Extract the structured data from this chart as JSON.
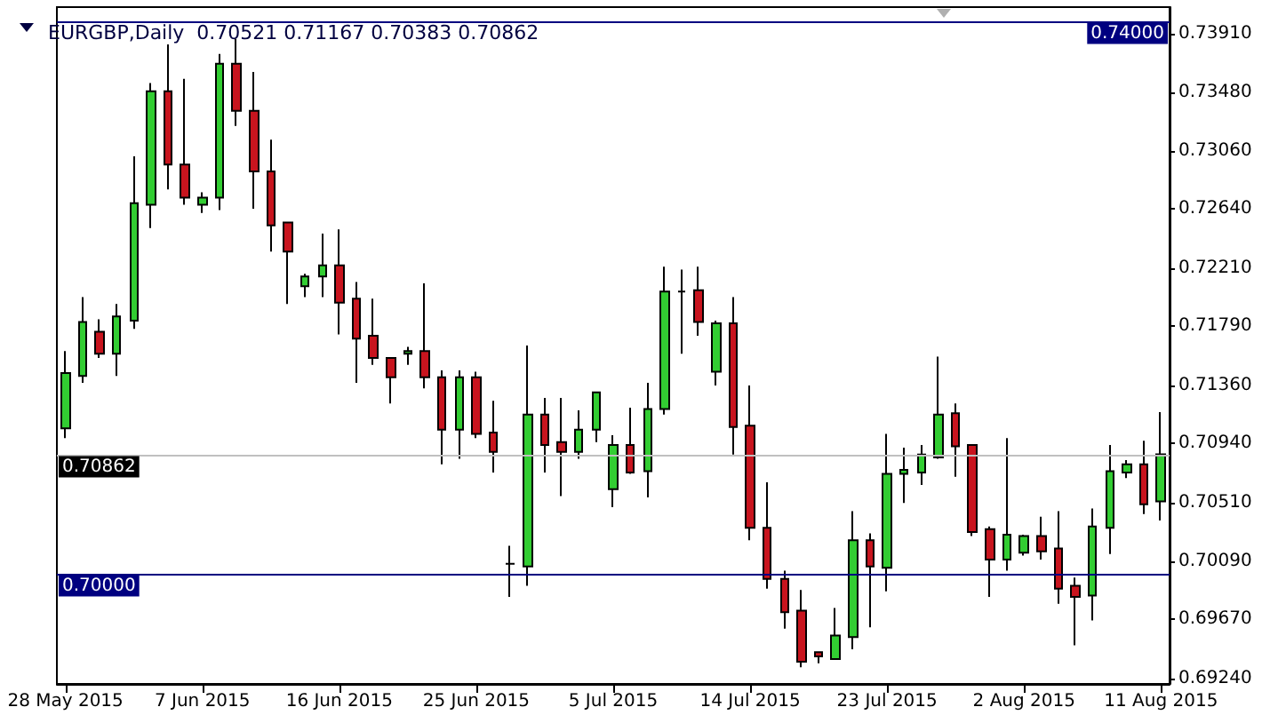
{
  "chart_data": {
    "type": "candlestick",
    "title": "EURGBP,Daily  0.70521 0.71167 0.70383 0.70862",
    "categories": [
      "28 May 2015",
      null,
      null,
      null,
      null,
      null,
      null,
      null,
      "7 Jun 2015",
      null,
      null,
      null,
      null,
      null,
      null,
      null,
      "16 Jun 2015",
      null,
      null,
      null,
      null,
      null,
      null,
      null,
      "25 Jun 2015",
      null,
      null,
      null,
      null,
      null,
      null,
      null,
      "5 Jul 2015",
      null,
      null,
      null,
      null,
      null,
      null,
      null,
      "14 Jul 2015",
      null,
      null,
      null,
      null,
      null,
      null,
      null,
      "23 Jul 2015",
      null,
      null,
      null,
      null,
      null,
      null,
      null,
      "2 Aug 2015",
      null,
      null,
      null,
      null,
      null,
      null,
      null,
      "11 Aug 2015"
    ],
    "ohlc": [
      [
        0.7105,
        0.7161,
        0.7098,
        0.7145
      ],
      [
        0.7143,
        0.72,
        0.7138,
        0.7182
      ],
      [
        0.7175,
        0.7184,
        0.7156,
        0.7159
      ],
      [
        0.7159,
        0.7195,
        0.7143,
        0.7186
      ],
      [
        0.7183,
        0.7302,
        0.7177,
        0.7268
      ],
      [
        0.7267,
        0.7355,
        0.725,
        0.7349
      ],
      [
        0.7349,
        0.7383,
        0.7278,
        0.7296
      ],
      [
        0.7296,
        0.7358,
        0.7267,
        0.7272
      ],
      [
        0.7267,
        0.7276,
        0.7261,
        0.7272
      ],
      [
        0.7272,
        0.7376,
        0.7263,
        0.7369
      ],
      [
        0.7369,
        0.7387,
        0.7324,
        0.7335
      ],
      [
        0.7335,
        0.7363,
        0.7264,
        0.7291
      ],
      [
        0.7291,
        0.7314,
        0.7233,
        0.7252
      ],
      [
        0.7254,
        0.7254,
        0.7195,
        0.7233
      ],
      [
        0.7208,
        0.7217,
        0.72,
        0.7215
      ],
      [
        0.7215,
        0.7246,
        0.72,
        0.7223
      ],
      [
        0.7223,
        0.7249,
        0.7173,
        0.7196
      ],
      [
        0.7199,
        0.7211,
        0.7138,
        0.717
      ],
      [
        0.7172,
        0.7199,
        0.7151,
        0.7156
      ],
      [
        0.7156,
        0.7156,
        0.7123,
        0.7142
      ],
      [
        0.7159,
        0.7164,
        0.7151,
        0.7161
      ],
      [
        0.7161,
        0.721,
        0.7134,
        0.7142
      ],
      [
        0.7142,
        0.7147,
        0.7079,
        0.7104
      ],
      [
        0.7104,
        0.7147,
        0.7083,
        0.7142
      ],
      [
        0.7142,
        0.7146,
        0.7098,
        0.7101
      ],
      [
        0.7102,
        0.7125,
        0.7073,
        0.7088
      ],
      [
        0.7007,
        0.702,
        0.6983,
        0.7007
      ],
      [
        0.7005,
        0.7165,
        0.6991,
        0.7115
      ],
      [
        0.7115,
        0.7127,
        0.7073,
        0.7093
      ],
      [
        0.7095,
        0.7127,
        0.7056,
        0.7088
      ],
      [
        0.7088,
        0.7118,
        0.7083,
        0.7104
      ],
      [
        0.7104,
        0.7131,
        0.7095,
        0.7131
      ],
      [
        0.7061,
        0.71,
        0.7048,
        0.7093
      ],
      [
        0.7093,
        0.712,
        0.7072,
        0.7073
      ],
      [
        0.7074,
        0.7138,
        0.7055,
        0.7119
      ],
      [
        0.7119,
        0.7222,
        0.7115,
        0.7204
      ],
      [
        0.7204,
        0.722,
        0.7159,
        0.7204
      ],
      [
        0.7205,
        0.7222,
        0.7172,
        0.7182
      ],
      [
        0.7146,
        0.7183,
        0.7136,
        0.7181
      ],
      [
        0.7181,
        0.72,
        0.7086,
        0.7106
      ],
      [
        0.7107,
        0.7136,
        0.7024,
        0.7033
      ],
      [
        0.7033,
        0.7066,
        0.6989,
        0.6996
      ],
      [
        0.6996,
        0.7002,
        0.696,
        0.6972
      ],
      [
        0.6973,
        0.6988,
        0.6932,
        0.6936
      ],
      [
        0.6943,
        0.6943,
        0.6935,
        0.694
      ],
      [
        0.6938,
        0.6975,
        0.6938,
        0.6955
      ],
      [
        0.6954,
        0.7045,
        0.6945,
        0.7024
      ],
      [
        0.7024,
        0.7029,
        0.6961,
        0.7005
      ],
      [
        0.7004,
        0.7101,
        0.6987,
        0.7072
      ],
      [
        0.7072,
        0.7091,
        0.7051,
        0.7075
      ],
      [
        0.7073,
        0.7093,
        0.7064,
        0.7086
      ],
      [
        0.7084,
        0.7157,
        0.7083,
        0.7115
      ],
      [
        0.7116,
        0.7123,
        0.707,
        0.7092
      ],
      [
        0.7093,
        0.7093,
        0.7027,
        0.703
      ],
      [
        0.7032,
        0.7034,
        0.6983,
        0.701
      ],
      [
        0.701,
        0.7098,
        0.7002,
        0.7028
      ],
      [
        0.7015,
        0.7028,
        0.7013,
        0.7027
      ],
      [
        0.7027,
        0.7041,
        0.701,
        0.7016
      ],
      [
        0.7018,
        0.7045,
        0.6978,
        0.6989
      ],
      [
        0.6991,
        0.6997,
        0.6948,
        0.6983
      ],
      [
        0.6984,
        0.7047,
        0.6966,
        0.7034
      ],
      [
        0.7033,
        0.7093,
        0.7014,
        0.7074
      ],
      [
        0.7073,
        0.7082,
        0.7069,
        0.7079
      ],
      [
        0.7079,
        0.7096,
        0.7043,
        0.705
      ],
      [
        0.70521,
        0.71167,
        0.70383,
        0.70862
      ]
    ],
    "ylim": [
      0.692,
      0.741
    ],
    "yticks": [
      {
        "value": 0.6924,
        "label": "0.69240"
      },
      {
        "value": 0.6967,
        "label": "0.69670"
      },
      {
        "value": 0.7009,
        "label": "0.70090"
      },
      {
        "value": 0.7051,
        "label": "0.70510"
      },
      {
        "value": 0.7094,
        "label": "0.70940"
      },
      {
        "value": 0.7136,
        "label": "0.71360"
      },
      {
        "value": 0.7179,
        "label": "0.71790"
      },
      {
        "value": 0.7221,
        "label": "0.72210"
      },
      {
        "value": 0.7264,
        "label": "0.72640"
      },
      {
        "value": 0.7306,
        "label": "0.73060"
      },
      {
        "value": 0.7348,
        "label": "0.73480"
      },
      {
        "value": 0.7391,
        "label": "0.73910"
      }
    ],
    "ref_lines": [
      {
        "axis": "y",
        "value": 0.74,
        "label": "0.74000",
        "color": "#000080"
      },
      {
        "axis": "y",
        "value": 0.7,
        "label": "0.70000",
        "color": "#000080"
      },
      {
        "axis": "y",
        "value": 0.70862,
        "label": "0.70862",
        "color": "#c0c0c0"
      }
    ],
    "grid": false
  }
}
